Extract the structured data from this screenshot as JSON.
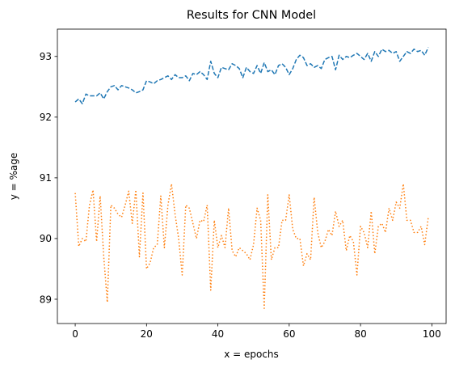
{
  "chart_data": {
    "type": "line",
    "title": "Results for CNN Model",
    "xlabel": "x = epochs",
    "ylabel": "y = %age",
    "xlim": [
      -5,
      104
    ],
    "ylim": [
      88.6,
      93.45
    ],
    "xticks": [
      0,
      20,
      40,
      60,
      80,
      100
    ],
    "yticks": [
      89,
      90,
      91,
      92,
      93
    ],
    "grid": false,
    "legend": "none",
    "x": [
      0,
      1,
      2,
      3,
      4,
      5,
      6,
      7,
      8,
      9,
      10,
      11,
      12,
      13,
      14,
      15,
      16,
      17,
      18,
      19,
      20,
      21,
      22,
      23,
      24,
      25,
      26,
      27,
      28,
      29,
      30,
      31,
      32,
      33,
      34,
      35,
      36,
      37,
      38,
      39,
      40,
      41,
      42,
      43,
      44,
      45,
      46,
      47,
      48,
      49,
      50,
      51,
      52,
      53,
      54,
      55,
      56,
      57,
      58,
      59,
      60,
      61,
      62,
      63,
      64,
      65,
      66,
      67,
      68,
      69,
      70,
      71,
      72,
      73,
      74,
      75,
      76,
      77,
      78,
      79,
      80,
      81,
      82,
      83,
      84,
      85,
      86,
      87,
      88,
      89,
      90,
      91,
      92,
      93,
      94,
      95,
      96,
      97,
      98,
      99
    ],
    "series": [
      {
        "color": "#1f77b4",
        "linestyle": "dashed",
        "values": [
          92.25,
          92.3,
          92.22,
          92.38,
          92.35,
          92.35,
          92.35,
          92.4,
          92.3,
          92.42,
          92.5,
          92.52,
          92.45,
          92.52,
          92.5,
          92.48,
          92.45,
          92.4,
          92.42,
          92.45,
          92.6,
          92.58,
          92.55,
          92.6,
          92.62,
          92.65,
          92.68,
          92.62,
          92.7,
          92.65,
          92.65,
          92.68,
          92.6,
          92.72,
          92.7,
          92.75,
          92.7,
          92.62,
          92.92,
          92.72,
          92.65,
          92.82,
          92.8,
          92.78,
          92.88,
          92.85,
          92.8,
          92.65,
          92.82,
          92.75,
          92.72,
          92.85,
          92.72,
          92.9,
          92.75,
          92.78,
          92.7,
          92.85,
          92.88,
          92.82,
          92.7,
          92.8,
          92.95,
          93.02,
          92.98,
          92.85,
          92.88,
          92.82,
          92.85,
          92.8,
          92.95,
          92.98,
          93.0,
          92.78,
          93.02,
          92.95,
          93.0,
          92.98,
          93.02,
          93.05,
          93.0,
          92.95,
          93.05,
          92.92,
          93.08,
          93.0,
          93.12,
          93.08,
          93.1,
          93.05,
          93.08,
          92.92,
          93.0,
          93.08,
          93.05,
          93.12,
          93.08,
          93.1,
          93.02,
          93.15
        ]
      },
      {
        "color": "#ff7f0e",
        "linestyle": "dotted",
        "values": [
          90.75,
          89.87,
          90.0,
          89.95,
          90.55,
          90.8,
          89.95,
          90.7,
          89.7,
          88.95,
          90.55,
          90.5,
          90.4,
          90.35,
          90.55,
          90.78,
          90.25,
          90.8,
          89.7,
          90.75,
          89.5,
          89.6,
          89.85,
          89.9,
          90.7,
          89.85,
          90.55,
          90.9,
          90.4,
          90.0,
          89.4,
          90.55,
          90.5,
          90.25,
          90.0,
          90.3,
          90.28,
          90.55,
          89.15,
          90.3,
          89.85,
          90.05,
          89.85,
          90.5,
          89.8,
          89.7,
          89.85,
          89.8,
          89.75,
          89.65,
          89.9,
          90.5,
          90.3,
          88.85,
          90.72,
          89.65,
          89.85,
          89.85,
          90.3,
          90.3,
          90.72,
          90.15,
          90.0,
          90.0,
          89.55,
          89.75,
          89.65,
          90.68,
          90.1,
          89.85,
          89.95,
          90.15,
          90.05,
          90.45,
          90.2,
          90.3,
          89.8,
          90.05,
          89.95,
          89.4,
          90.2,
          90.1,
          89.85,
          90.45,
          89.75,
          90.2,
          90.25,
          90.1,
          90.5,
          90.3,
          90.6,
          90.5,
          90.9,
          90.3,
          90.3,
          90.1,
          90.1,
          90.2,
          89.9,
          90.35
        ]
      }
    ]
  }
}
